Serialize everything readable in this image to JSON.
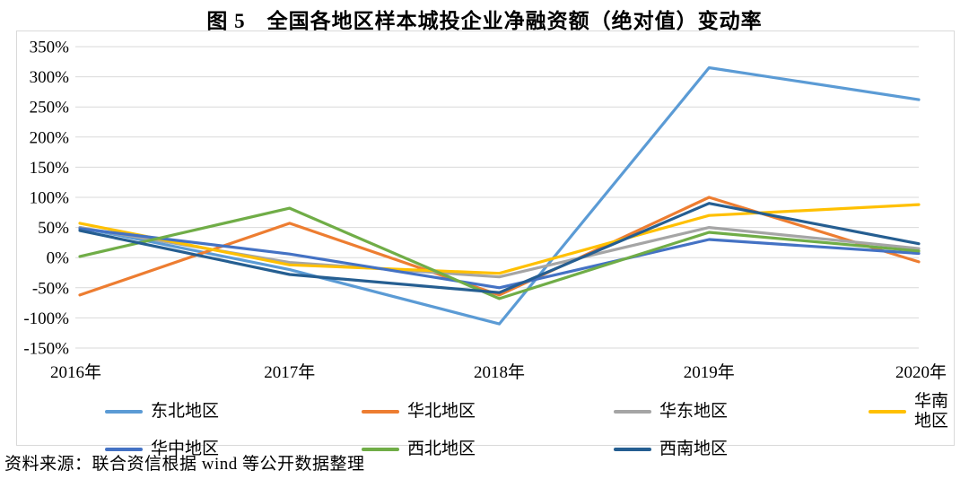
{
  "title": "图 5　全国各地区样本城投企业净融资额（绝对值）变动率",
  "footer": {
    "source_text": "资料来源：联合资信根据 wind 等公开数据整理"
  },
  "colors": {
    "gridline": "#d9d9d9",
    "chart_border": "#d9d9d9",
    "text": "#000000"
  },
  "chart_data": {
    "type": "line",
    "title": "图 5　全国各地区样本城投企业净融资额（绝对值）变动率",
    "xlabel": "",
    "ylabel": "",
    "categories": [
      "2016年",
      "2017年",
      "2018年",
      "2019年",
      "2020年"
    ],
    "series": [
      {
        "name": "东北地区",
        "color": "#5B9BD5",
        "values": [
          50,
          -20,
          -110,
          315,
          262
        ]
      },
      {
        "name": "华北地区",
        "color": "#ED7D31",
        "values": [
          -62,
          57,
          -62,
          100,
          -7
        ]
      },
      {
        "name": "华东地区",
        "color": "#A5A5A5",
        "values": [
          50,
          -8,
          -32,
          50,
          15
        ]
      },
      {
        "name": "华南地区",
        "color": "#FFC000",
        "values": [
          57,
          -12,
          -26,
          70,
          88
        ]
      },
      {
        "name": "华中地区",
        "color": "#4472C4",
        "values": [
          48,
          6,
          -50,
          30,
          7
        ]
      },
      {
        "name": "西北地区",
        "color": "#70AD47",
        "values": [
          2,
          82,
          -68,
          42,
          11
        ]
      },
      {
        "name": "西南地区",
        "color": "#255E91",
        "values": [
          45,
          -28,
          -58,
          90,
          23
        ]
      }
    ],
    "ylim": [
      -150,
      350
    ],
    "ytick_step": 50,
    "ytick_labels": [
      "350%",
      "300%",
      "250%",
      "200%",
      "150%",
      "100%",
      "50%",
      "0%",
      "-50%",
      "-100%",
      "-150%"
    ],
    "grid": true,
    "legend_position": "bottom"
  }
}
